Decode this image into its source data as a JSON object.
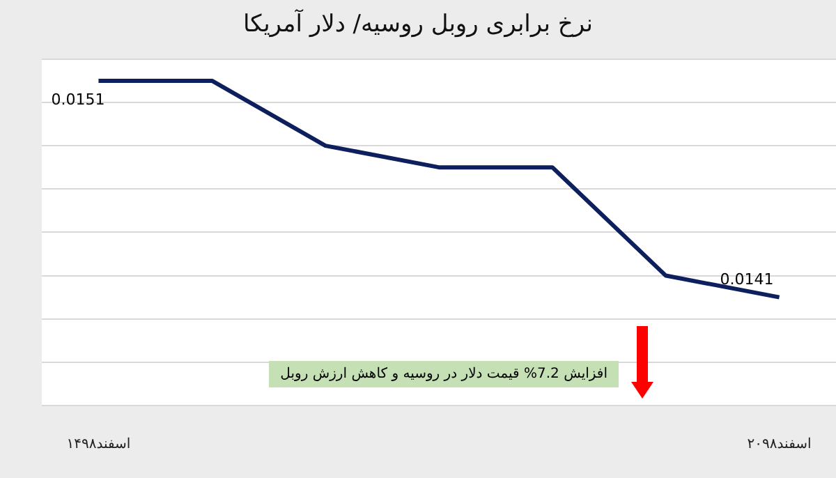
{
  "chart_data": {
    "type": "line",
    "title": "نرخ برابری روبل روسیه/ دلار آمریکا",
    "categories": [
      "۱۴اسفند۹۸",
      null,
      null,
      null,
      null,
      null,
      "۲۰اسفند۹۸"
    ],
    "series": [
      {
        "color": "#0d1f5c",
        "values": [
          0.0151,
          0.0151,
          0.0148,
          0.0147,
          0.0147,
          0.0142,
          0.0141
        ],
        "value_labels": [
          "0.0151",
          null,
          null,
          null,
          null,
          null,
          "0.0141"
        ]
      }
    ],
    "ylim": [
      0.0136,
      0.0152
    ],
    "yticks": [
      {
        "value": 0.0136,
        "label": null
      },
      {
        "value": 0.0138,
        "label": null
      },
      {
        "value": 0.014,
        "label": null
      },
      {
        "value": 0.0142,
        "label": null
      },
      {
        "value": 0.0144,
        "label": null
      },
      {
        "value": 0.0146,
        "label": null
      },
      {
        "value": 0.0148,
        "label": null
      },
      {
        "value": 0.015,
        "label": null
      },
      {
        "value": 0.0152,
        "label": null
      }
    ],
    "grid": "y",
    "tick_labels": "x",
    "marker": "none",
    "line_style": "solid",
    "legend": false,
    "annotations": [
      "افزایش 7.2%  قیمت دلار در روسیه و کاهش ارزش روبل"
    ]
  }
}
